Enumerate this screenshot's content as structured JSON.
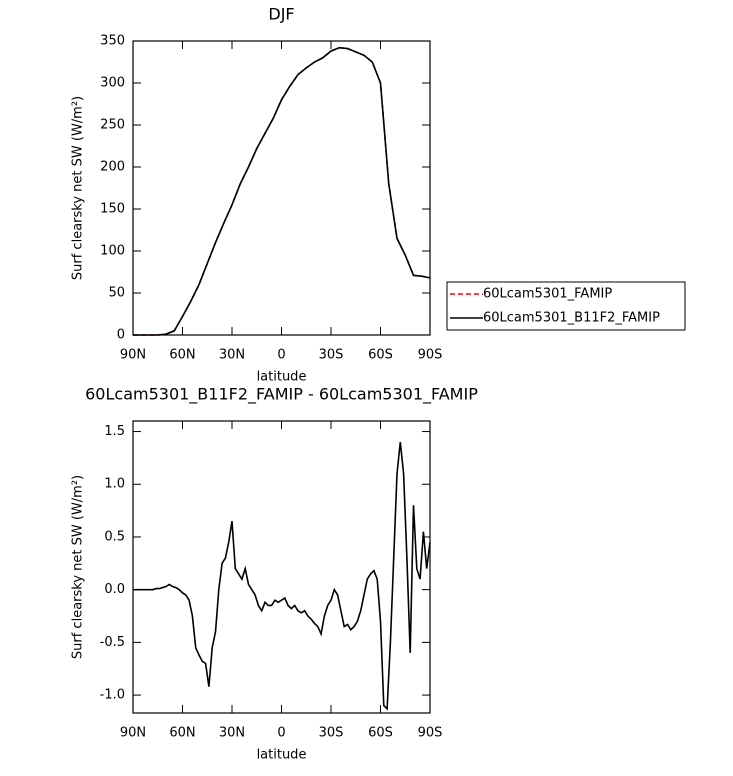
{
  "chart_data": [
    {
      "type": "line",
      "title": "DJF",
      "x_label": "latitude",
      "y_label": "Surf clearsky net SW (W/m²)",
      "x": [
        90,
        85,
        80,
        75,
        70,
        65,
        60,
        55,
        50,
        45,
        40,
        35,
        30,
        25,
        20,
        15,
        10,
        5,
        0,
        -5,
        -10,
        -15,
        -20,
        -25,
        -30,
        -35,
        -40,
        -45,
        -50,
        -55,
        -60,
        -65,
        -70,
        -75,
        -80,
        -85,
        -90
      ],
      "xlim": [
        90,
        -90
      ],
      "xticks": [
        {
          "value": 90,
          "label": "90N"
        },
        {
          "value": 60,
          "label": "60N"
        },
        {
          "value": 30,
          "label": "30N"
        },
        0,
        {
          "value": -30,
          "label": "30S"
        },
        {
          "value": -60,
          "label": "60S"
        },
        {
          "value": -90,
          "label": "90S"
        }
      ],
      "ylim": [
        0,
        350
      ],
      "yticks": [
        0,
        50,
        100,
        150,
        200,
        250,
        300,
        350
      ],
      "legend": "right",
      "series": [
        {
          "name": "60Lcam5301_FAMIP",
          "color": "#ff0000",
          "linestyle": "dashed",
          "values": [
            0,
            0,
            0,
            0,
            1,
            5,
            22,
            40,
            60,
            85,
            110,
            133,
            155,
            180,
            200,
            222,
            240,
            258,
            280,
            296,
            310,
            318,
            325,
            330,
            338,
            342,
            341,
            337,
            333,
            325,
            300,
            180,
            115,
            95,
            71,
            70,
            68
          ]
        },
        {
          "name": "60Lcam5301_B11F2_FAMIP",
          "color": "#000000",
          "linestyle": "solid",
          "values": [
            0,
            0,
            0,
            0,
            1,
            5,
            22,
            40,
            60,
            85,
            110,
            133,
            155,
            180,
            200,
            222,
            240,
            258,
            280,
            296,
            310,
            318,
            325,
            330,
            338,
            342,
            341,
            337,
            333,
            325,
            300,
            180,
            115,
            95,
            71,
            70,
            68
          ]
        }
      ]
    },
    {
      "type": "line",
      "title": "60Lcam5301_B11F2_FAMIP - 60Lcam5301_FAMIP",
      "x_label": "latitude",
      "y_label": "Surf clearsky net SW (W/m²)",
      "x": [
        90,
        88,
        86,
        84,
        82,
        80,
        78,
        76,
        74,
        72,
        70,
        68,
        66,
        64,
        62,
        60,
        58,
        56,
        54,
        52,
        50,
        48,
        46,
        44,
        42,
        40,
        38,
        36,
        34,
        32,
        30,
        28,
        26,
        24,
        22,
        20,
        18,
        16,
        14,
        12,
        10,
        8,
        6,
        4,
        2,
        0,
        -2,
        -4,
        -6,
        -8,
        -10,
        -12,
        -14,
        -16,
        -18,
        -20,
        -22,
        -24,
        -26,
        -28,
        -30,
        -32,
        -34,
        -36,
        -38,
        -40,
        -42,
        -44,
        -46,
        -48,
        -50,
        -52,
        -54,
        -56,
        -58,
        -60,
        -62,
        -64,
        -66,
        -68,
        -70,
        -72,
        -74,
        -76,
        -78,
        -80,
        -82,
        -84,
        -86,
        -88,
        -90
      ],
      "xlim": [
        90,
        -90
      ],
      "xticks": [
        {
          "value": 90,
          "label": "90N"
        },
        {
          "value": 60,
          "label": "60N"
        },
        {
          "value": 30,
          "label": "30N"
        },
        0,
        {
          "value": -30,
          "label": "30S"
        },
        {
          "value": -60,
          "label": "60S"
        },
        {
          "value": -90,
          "label": "90S"
        }
      ],
      "ylim": [
        -1.17,
        1.6
      ],
      "yticks": [
        {
          "value": -1,
          "label": "-1.0"
        },
        -0.5,
        {
          "value": 0,
          "label": "0.0"
        },
        0.5,
        {
          "value": 1,
          "label": "1.0"
        },
        1.5
      ],
      "color": "#000000",
      "values": [
        0,
        0,
        0,
        0,
        0,
        0,
        0,
        0.01,
        0.01,
        0.02,
        0.03,
        0.05,
        0.03,
        0.02,
        0,
        -0.03,
        -0.05,
        -0.1,
        -0.25,
        -0.55,
        -0.62,
        -0.68,
        -0.7,
        -0.92,
        -0.55,
        -0.4,
        0,
        0.25,
        0.3,
        0.45,
        0.65,
        0.2,
        0.15,
        0.1,
        0.2,
        0.05,
        0,
        -0.05,
        -0.15,
        -0.2,
        -0.12,
        -0.15,
        -0.15,
        -0.1,
        -0.12,
        -0.1,
        -0.08,
        -0.15,
        -0.18,
        -0.15,
        -0.2,
        -0.22,
        -0.2,
        -0.25,
        -0.28,
        -0.32,
        -0.35,
        -0.42,
        -0.25,
        -0.15,
        -0.1,
        0,
        -0.05,
        -0.2,
        -0.35,
        -0.33,
        -0.38,
        -0.35,
        -0.3,
        -0.2,
        -0.05,
        0.1,
        0.15,
        0.18,
        0.1,
        -0.3,
        -1.1,
        -1.13,
        -0.5,
        0.3,
        1.1,
        1.4,
        1.1,
        0.3,
        -0.6,
        0.8,
        0.2,
        0.1,
        0.55,
        0.2,
        0.45
      ]
    }
  ]
}
